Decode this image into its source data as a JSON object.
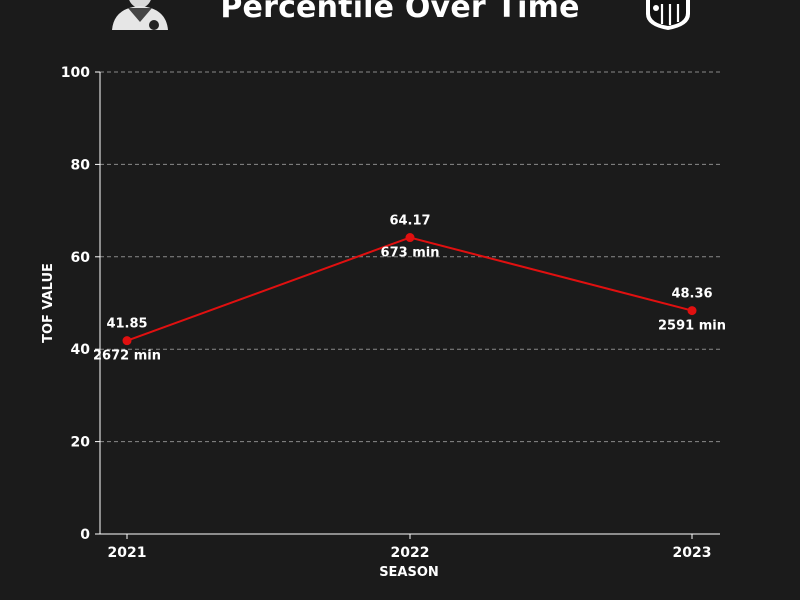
{
  "chart_data": {
    "type": "line",
    "title": "Percentile Over Time",
    "xlabel": "SEASON",
    "ylabel": "TOF VALUE",
    "categories": [
      "2021",
      "2022",
      "2023"
    ],
    "series": [
      {
        "values": [
          41.85,
          64.17,
          48.36
        ],
        "minutes_labels": [
          "2672 min",
          "673 min",
          "2591 min"
        ],
        "color": "#e01010"
      }
    ],
    "ylim": [
      0,
      100
    ],
    "yticks": [
      0,
      20,
      40,
      60,
      80,
      100
    ],
    "grid": true,
    "legend": "none"
  },
  "colors": {
    "background": "#1b1b1b",
    "text": "#ffffff",
    "grid": "#8a8a8a",
    "line": "#e01010"
  },
  "icons": {
    "left": "player-avatar-icon",
    "right": "club-crest-icon"
  }
}
